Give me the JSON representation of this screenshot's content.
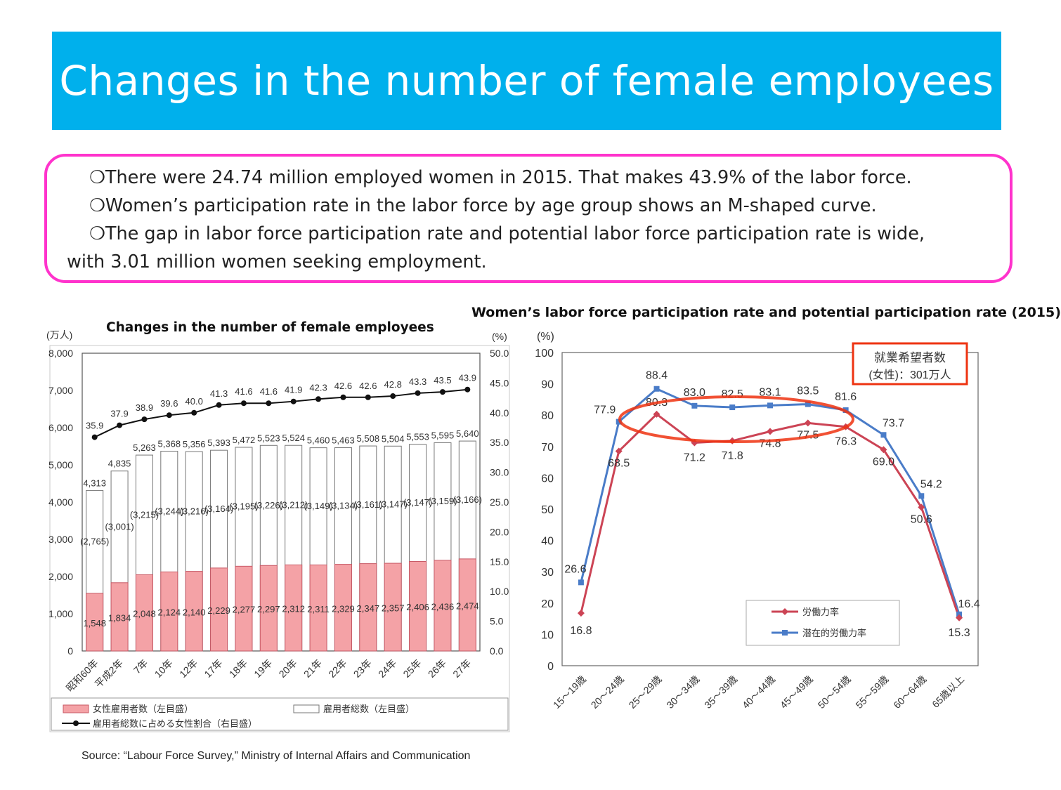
{
  "header": {
    "title": "Changes in the number of female employees"
  },
  "summary": {
    "points": [
      "There were 24.74 million employed women in 2015. That makes 43.9% of the labor force.",
      "Women’s participation rate in the labor force by age group shows an M-shaped curve.",
      "The gap in labor force participation rate and potential labor force participation rate is wide,"
    ],
    "continuation": "with 3.01 million women seeking employment.",
    "bullet": "❍"
  },
  "footer": {
    "source": "Source: “Labour Force Survey,” Ministry of Internal Affairs and Communication"
  },
  "colors": {
    "banner": "#00b0ec",
    "box_border": "#ff33cc",
    "female_bar": "#f4a2a6",
    "female_bar_edge": "#c85a66",
    "red_line": "#cc4455",
    "blue_line": "#4a7cc8",
    "highlight": "#ee3311"
  },
  "chart_data": [
    {
      "type": "bar",
      "title": "Changes in the number of female employees",
      "y_unit_label": "(万人)",
      "y2_unit_label": "(%)",
      "ylim": [
        0,
        8000
      ],
      "y_ticks": [
        "0",
        "1,000",
        "2,000",
        "3,000",
        "4,000",
        "5,000",
        "6,000",
        "7,000",
        "8,000"
      ],
      "y2lim": [
        0,
        50
      ],
      "y2_ticks": [
        "0.0",
        "5.0",
        "10.0",
        "15.0",
        "20.0",
        "25.0",
        "30.0",
        "35.0",
        "40.0",
        "45.0",
        "50.0"
      ],
      "categories": [
        "昭和60年",
        "平成2年",
        "7年",
        "10年",
        "12年",
        "17年",
        "18年",
        "19年",
        "20年",
        "21年",
        "22年",
        "23年",
        "24年",
        "25年",
        "26年",
        "27年"
      ],
      "series": [
        {
          "name": "女性雇用者数（左目盛）",
          "values": [
            1548,
            1834,
            2048,
            2124,
            2140,
            2229,
            2277,
            2297,
            2312,
            2311,
            2329,
            2347,
            2357,
            2406,
            2436,
            2474
          ],
          "labels": [
            "1,548",
            "1,834",
            "2,048",
            "2,124",
            "2,140",
            "2,229",
            "2,277",
            "2,297",
            "2,312",
            "2,311",
            "2,329",
            "2,347",
            "2,357",
            "2,406",
            "2,436",
            "2,474"
          ]
        },
        {
          "name": "雇用者総数（左目盛）",
          "values": [
            4313,
            4835,
            5263,
            5368,
            5356,
            5393,
            5472,
            5523,
            5524,
            5460,
            5463,
            5508,
            5504,
            5553,
            5595,
            5640
          ],
          "labels": [
            "4,313",
            "4,835",
            "5,263",
            "5,368",
            "5,356",
            "5,393",
            "5,472",
            "5,523",
            "5,524",
            "5,460",
            "5,463",
            "5,508",
            "5,504",
            "5,553",
            "5,595",
            "5,640"
          ]
        },
        {
          "name": "雇用者総数に占める女性割合（右目盛）",
          "values": [
            35.9,
            37.9,
            38.9,
            39.6,
            40.0,
            41.3,
            41.6,
            41.6,
            41.9,
            42.3,
            42.6,
            42.6,
            42.8,
            43.3,
            43.5,
            43.9
          ],
          "labels": [
            "35.9",
            "37.9",
            "38.9",
            "39.6",
            "40.0",
            "41.3",
            "41.6",
            "41.6",
            "41.9",
            "42.3",
            "42.6",
            "42.6",
            "42.8",
            "43.3",
            "43.5",
            "43.9"
          ]
        }
      ],
      "male_labels": [
        "(2,765)",
        "(3,001)",
        "(3,215)",
        "(3,244)",
        "(3,216)",
        "(3,164)",
        "(3,195)",
        "(3,226)",
        "(3,212)",
        "(3,149)",
        "(3,134)",
        "(3,161)",
        "(3,147)",
        "(3,147)",
        "(3,159)",
        "(3,166)"
      ],
      "legend": [
        "女性雇用者数（左目盛）",
        "雇用者総数（左目盛）",
        "雇用者総数に占める女性割合（右目盛）"
      ]
    },
    {
      "type": "line",
      "title": "Women’s labor force participation rate and potential participation rate (2015)",
      "y_unit_label": "(%)",
      "ylim": [
        0,
        100
      ],
      "y_ticks": [
        "0",
        "10",
        "20",
        "30",
        "40",
        "50",
        "60",
        "70",
        "80",
        "90",
        "100"
      ],
      "categories": [
        "15～19歳",
        "20～24歳",
        "25～29歳",
        "30～34歳",
        "35～39歳",
        "40～44歳",
        "45～49歳",
        "50～54歳",
        "55～59歳",
        "60～64歳",
        "65歳以上"
      ],
      "series": [
        {
          "name": "労働力率",
          "values": [
            16.8,
            68.5,
            80.3,
            71.2,
            71.8,
            74.8,
            77.5,
            76.3,
            69.0,
            50.6,
            15.3
          ],
          "labels": [
            "16.8",
            "68.5",
            "80.3",
            "71.2",
            "71.8",
            "74.8",
            "77.5",
            "76.3",
            "69.0",
            "50.6",
            "15.3"
          ]
        },
        {
          "name": "潜在的労働力率",
          "values": [
            26.6,
            77.9,
            88.4,
            83.0,
            82.5,
            83.1,
            83.5,
            81.6,
            73.7,
            54.2,
            16.4
          ],
          "labels": [
            "26.6",
            "77.9",
            "88.4",
            "83.0",
            "82.5",
            "83.1",
            "83.5",
            "81.6",
            "73.7",
            "54.2",
            "16.4"
          ]
        }
      ],
      "callout": {
        "line1": "就業希望者数",
        "line2": "(女性)：301万人"
      }
    }
  ]
}
